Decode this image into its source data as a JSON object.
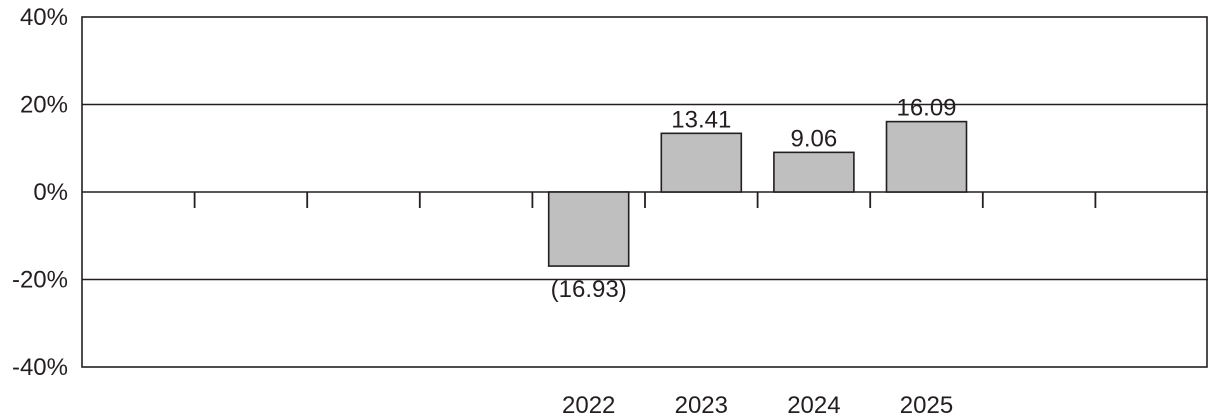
{
  "chart_data": {
    "type": "bar",
    "title": "",
    "xlabel": "",
    "ylabel": "",
    "ylim": [
      -40,
      40
    ],
    "yticks": [
      40,
      20,
      0,
      -20,
      -40
    ],
    "ytick_labels": [
      "40%",
      "20%",
      "0%",
      "-20%",
      "-40%"
    ],
    "grid": true,
    "slot_count": 10,
    "categories": [
      "",
      "",
      "",
      "",
      "2022",
      "2023",
      "2024",
      "2025",
      "",
      ""
    ],
    "values": [
      null,
      null,
      null,
      null,
      -16.93,
      13.41,
      9.06,
      16.09,
      null,
      null
    ],
    "data_labels": [
      "",
      "",
      "",
      "",
      "(16.93)",
      "13.41",
      "9.06",
      "16.09",
      "",
      ""
    ],
    "colors": {
      "bar_fill": "#bfbfbf",
      "bar_stroke": "#231f20",
      "axis": "#231f20",
      "grid": "#231f20"
    }
  }
}
